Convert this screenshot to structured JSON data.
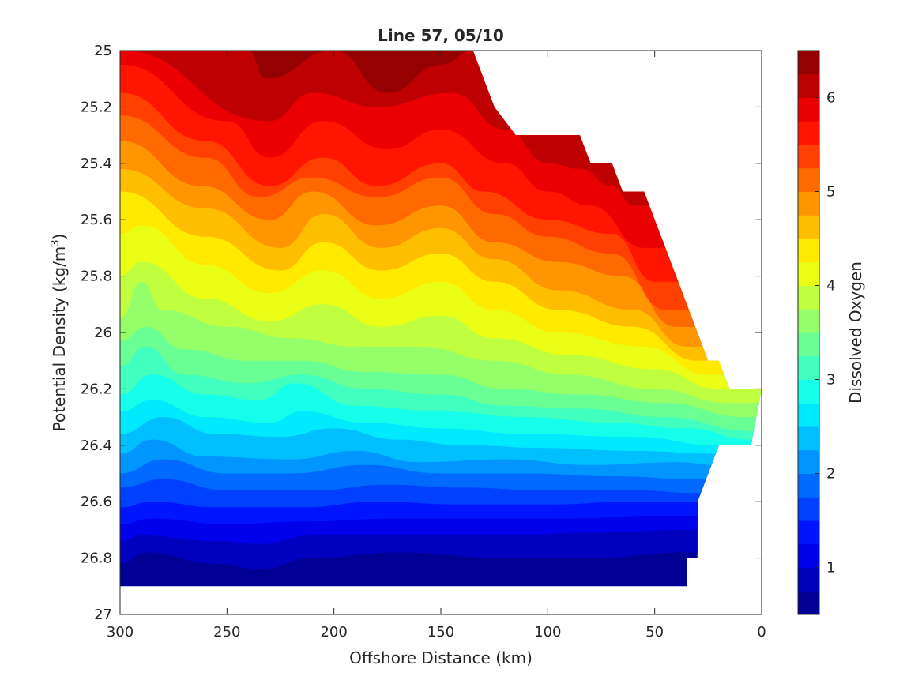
{
  "chart_data": {
    "type": "contour",
    "title": "Line 57, 05/10",
    "xlabel": "Offshore Distance (km)",
    "ylabel_prefix": "Potential Density (kg/m",
    "ylabel_sup": "3",
    "ylabel_suffix": ")",
    "colorbar_label": "Dissolved Oxygen",
    "x_reversed": true,
    "y_reversed": true,
    "xlim": [
      0,
      300
    ],
    "ylim": [
      25,
      27
    ],
    "xticks": [
      300,
      250,
      200,
      150,
      100,
      50,
      0
    ],
    "yticks": [
      25,
      25.2,
      25.4,
      25.6,
      25.8,
      26,
      26.2,
      26.4,
      26.6,
      26.8,
      27
    ],
    "ytick_labels": [
      "25",
      "25.2",
      "25.4",
      "25.6",
      "25.8",
      "26",
      "26.2",
      "26.4",
      "26.6",
      "26.8",
      "27"
    ],
    "colorbar_ticks": [
      1,
      2,
      3,
      4,
      5,
      6
    ],
    "colorbar_range": [
      0.5,
      6.5
    ],
    "contour_levels": [
      0.75,
      1.0,
      1.25,
      1.5,
      1.75,
      2.0,
      2.25,
      2.5,
      2.75,
      3.0,
      3.25,
      3.5,
      3.75,
      4.0,
      4.25,
      4.5,
      4.75,
      5.0,
      5.25,
      5.5,
      5.75,
      6.0,
      6.25
    ],
    "grid": false,
    "colormap": "jet",
    "data_boundary": {
      "bottom_density": 26.9,
      "bottom_density_nearshore_x": 35,
      "right_edge": [
        [
          135,
          25.0
        ],
        [
          125,
          25.2
        ],
        [
          115,
          25.3
        ],
        [
          85,
          25.3
        ],
        [
          80,
          25.4
        ],
        [
          70,
          25.4
        ],
        [
          65,
          25.5
        ],
        [
          55,
          25.5
        ],
        [
          25,
          26.1
        ],
        [
          20,
          26.1
        ],
        [
          15,
          26.2
        ],
        [
          0,
          26.2
        ],
        [
          5,
          26.4
        ],
        [
          20,
          26.4
        ],
        [
          30,
          26.6
        ],
        [
          30,
          26.8
        ],
        [
          35,
          26.8
        ],
        [
          35,
          26.9
        ]
      ]
    },
    "contour_lines": [
      {
        "level": 6.25,
        "x": [
          300,
          240,
          232,
          200,
          175,
          150,
          135
        ],
        "y": [
          25.0,
          25.0,
          25.1,
          25.0,
          25.15,
          25.05,
          25.0
        ]
      },
      {
        "level": 6.0,
        "x": [
          300,
          230,
          210,
          180,
          145,
          120,
          100,
          85,
          70,
          60
        ],
        "y": [
          25.0,
          25.25,
          25.15,
          25.2,
          25.15,
          25.28,
          25.4,
          25.42,
          25.48,
          25.55
        ]
      },
      {
        "level": 5.75,
        "x": [
          300,
          250,
          230,
          205,
          175,
          150,
          120,
          100,
          80,
          55
        ],
        "y": [
          25.05,
          25.25,
          25.38,
          25.25,
          25.35,
          25.28,
          25.4,
          25.5,
          25.55,
          25.7
        ]
      },
      {
        "level": 5.5,
        "x": [
          300,
          260,
          230,
          205,
          180,
          150,
          130,
          100,
          70,
          50
        ],
        "y": [
          25.15,
          25.32,
          25.48,
          25.38,
          25.48,
          25.4,
          25.5,
          25.6,
          25.65,
          25.82
        ]
      },
      {
        "level": 5.25,
        "x": [
          300,
          260,
          235,
          210,
          180,
          150,
          125,
          100,
          70,
          45
        ],
        "y": [
          25.23,
          25.38,
          25.52,
          25.45,
          25.52,
          25.45,
          25.58,
          25.66,
          25.72,
          25.92
        ]
      },
      {
        "level": 5.0,
        "x": [
          300,
          262,
          230,
          210,
          180,
          150,
          125,
          95,
          65,
          40
        ],
        "y": [
          25.32,
          25.48,
          25.6,
          25.5,
          25.62,
          25.55,
          25.68,
          25.75,
          25.8,
          25.98
        ]
      },
      {
        "level": 4.75,
        "x": [
          300,
          260,
          225,
          205,
          178,
          150,
          125,
          95,
          60,
          35
        ],
        "y": [
          25.42,
          25.56,
          25.7,
          25.58,
          25.7,
          25.63,
          25.74,
          25.85,
          25.92,
          26.05
        ]
      },
      {
        "level": 4.5,
        "x": [
          300,
          260,
          225,
          205,
          178,
          150,
          125,
          95,
          60,
          30
        ],
        "y": [
          25.5,
          25.66,
          25.78,
          25.68,
          25.78,
          25.72,
          25.82,
          25.92,
          25.98,
          26.1
        ]
      },
      {
        "level": 4.25,
        "x": [
          300,
          290,
          260,
          230,
          205,
          178,
          150,
          125,
          95,
          55,
          25
        ],
        "y": [
          25.65,
          25.62,
          25.76,
          25.86,
          25.78,
          25.88,
          25.82,
          25.92,
          26.0,
          26.05,
          26.15
        ]
      },
      {
        "level": 4.0,
        "x": [
          300,
          290,
          260,
          230,
          205,
          178,
          150,
          125,
          90,
          50,
          20
        ],
        "y": [
          25.8,
          25.75,
          25.88,
          25.96,
          25.9,
          25.98,
          25.94,
          26.02,
          26.08,
          26.13,
          26.2
        ]
      },
      {
        "level": 3.75,
        "x": [
          300,
          290,
          280,
          250,
          220,
          190,
          160,
          125,
          90,
          50,
          15
        ],
        "y": [
          25.95,
          25.82,
          25.92,
          25.98,
          26.02,
          26.05,
          26.05,
          26.1,
          26.15,
          26.2,
          26.25
        ]
      },
      {
        "level": 3.5,
        "x": [
          300,
          288,
          270,
          240,
          215,
          185,
          150,
          120,
          85,
          45,
          8
        ],
        "y": [
          26.03,
          25.98,
          26.06,
          26.1,
          26.1,
          26.14,
          26.15,
          26.2,
          26.22,
          26.25,
          26.3
        ]
      },
      {
        "level": 3.25,
        "x": [
          300,
          288,
          270,
          240,
          215,
          185,
          150,
          120,
          85,
          45,
          5
        ],
        "y": [
          26.12,
          26.05,
          26.15,
          26.18,
          26.15,
          26.2,
          26.22,
          26.26,
          26.27,
          26.3,
          26.35
        ]
      },
      {
        "level": 3.0,
        "x": [
          300,
          285,
          260,
          235,
          218,
          190,
          150,
          110,
          70,
          35,
          5
        ],
        "y": [
          26.22,
          26.15,
          26.22,
          26.24,
          26.18,
          26.26,
          26.28,
          26.3,
          26.32,
          26.34,
          26.38
        ]
      },
      {
        "level": 2.75,
        "x": [
          300,
          285,
          260,
          230,
          215,
          185,
          150,
          110,
          60,
          20
        ],
        "y": [
          26.28,
          26.24,
          26.3,
          26.32,
          26.28,
          26.32,
          26.34,
          26.36,
          26.37,
          26.4
        ]
      },
      {
        "level": 2.5,
        "x": [
          300,
          280,
          255,
          225,
          200,
          170,
          140,
          100,
          60,
          20
        ],
        "y": [
          26.36,
          26.3,
          26.36,
          26.37,
          26.34,
          26.38,
          26.4,
          26.41,
          26.42,
          26.43
        ]
      },
      {
        "level": 2.25,
        "x": [
          300,
          285,
          260,
          220,
          190,
          160,
          120,
          80,
          40,
          20
        ],
        "y": [
          26.43,
          26.38,
          26.44,
          26.45,
          26.42,
          26.46,
          26.45,
          26.47,
          26.46,
          26.47
        ]
      },
      {
        "level": 2.0,
        "x": [
          300,
          280,
          250,
          220,
          185,
          150,
          110,
          70,
          30
        ],
        "y": [
          26.5,
          26.45,
          26.5,
          26.5,
          26.47,
          26.5,
          26.5,
          26.51,
          26.52
        ]
      },
      {
        "level": 1.75,
        "x": [
          300,
          280,
          250,
          210,
          175,
          140,
          100,
          60,
          28
        ],
        "y": [
          26.55,
          26.52,
          26.56,
          26.56,
          26.54,
          26.55,
          26.56,
          26.56,
          26.57
        ]
      },
      {
        "level": 1.5,
        "x": [
          300,
          285,
          255,
          215,
          180,
          140,
          100,
          60,
          30
        ],
        "y": [
          26.62,
          26.6,
          26.62,
          26.62,
          26.6,
          26.61,
          26.61,
          26.6,
          26.6
        ]
      },
      {
        "level": 1.25,
        "x": [
          300,
          285,
          250,
          215,
          170,
          130,
          90,
          50,
          30
        ],
        "y": [
          26.68,
          26.66,
          26.68,
          26.67,
          26.66,
          26.66,
          26.66,
          26.65,
          26.65
        ]
      },
      {
        "level": 1.0,
        "x": [
          300,
          290,
          255,
          235,
          210,
          170,
          120,
          80,
          35
        ],
        "y": [
          26.74,
          26.72,
          26.74,
          26.75,
          26.72,
          26.72,
          26.72,
          26.71,
          26.7
        ]
      },
      {
        "level": 0.75,
        "x": [
          300,
          288,
          255,
          235,
          210,
          170,
          120,
          80,
          35
        ],
        "y": [
          26.82,
          26.78,
          26.82,
          26.84,
          26.8,
          26.78,
          26.8,
          26.8,
          26.78
        ]
      }
    ]
  }
}
